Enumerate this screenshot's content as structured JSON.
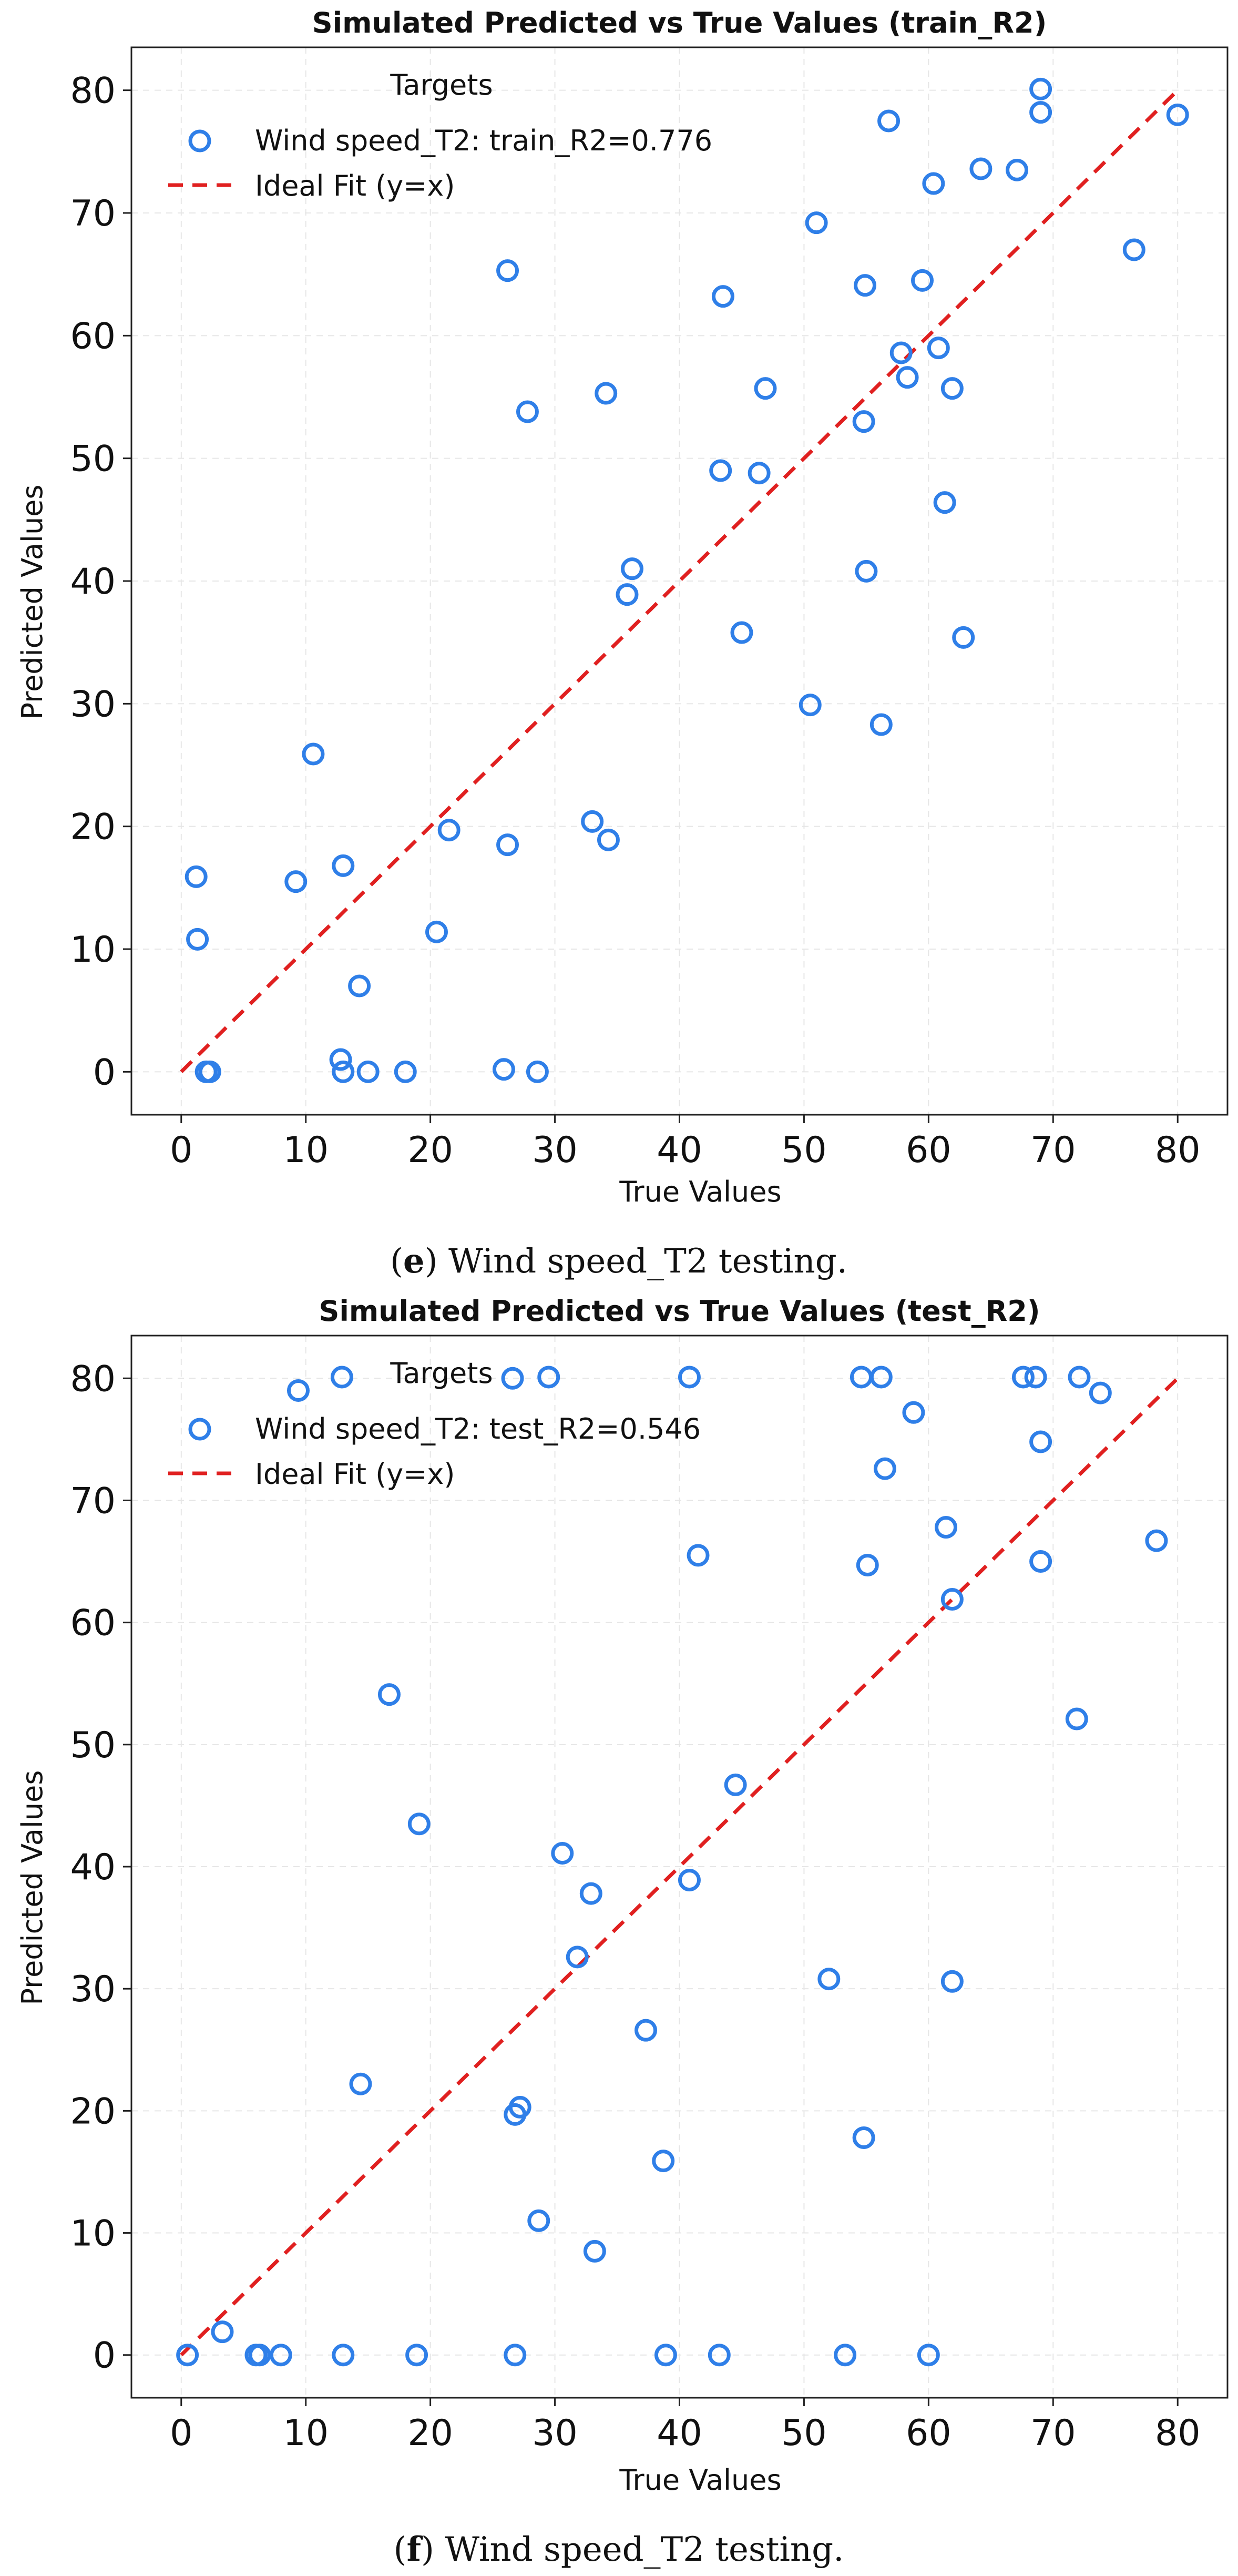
{
  "colors": {
    "points": "#2f7fe8",
    "ideal_line": "#e02020"
  },
  "chart_data": [
    {
      "type": "scatter",
      "title": "Simulated Predicted vs True Values (train_R2)",
      "xlabel": "True Values",
      "ylabel": "Predicted Values",
      "xlim": [
        -4,
        84
      ],
      "ylim": [
        -3.5,
        83.5
      ],
      "xticks": [
        0,
        10,
        20,
        30,
        40,
        50,
        60,
        70,
        80
      ],
      "yticks": [
        0,
        10,
        20,
        30,
        40,
        50,
        60,
        70,
        80
      ],
      "grid": true,
      "legend": {
        "title": "Targets",
        "placement": "top-left",
        "series_label": "Wind speed_T2: train_R2=0.776",
        "ideal_label": "Ideal Fit (y=x)"
      },
      "ideal_line": {
        "from": 0,
        "to": 80
      },
      "caption": {
        "letter": "e",
        "open": "(",
        "close": ")",
        "text": " Wind speed_T2 testing."
      },
      "points": [
        {
          "x": 1.2,
          "y": 15.9
        },
        {
          "x": 1.3,
          "y": 10.8
        },
        {
          "x": 2.0,
          "y": 0
        },
        {
          "x": 2.3,
          "y": 0
        },
        {
          "x": 9.2,
          "y": 15.5
        },
        {
          "x": 10.6,
          "y": 25.9
        },
        {
          "x": 12.8,
          "y": 1.0
        },
        {
          "x": 13.0,
          "y": 16.8
        },
        {
          "x": 13.0,
          "y": 0
        },
        {
          "x": 14.3,
          "y": 7.0
        },
        {
          "x": 15.0,
          "y": 0
        },
        {
          "x": 18.0,
          "y": 0
        },
        {
          "x": 20.5,
          "y": 11.4
        },
        {
          "x": 21.5,
          "y": 19.7
        },
        {
          "x": 25.9,
          "y": 0.2
        },
        {
          "x": 26.2,
          "y": 18.5
        },
        {
          "x": 26.2,
          "y": 65.3
        },
        {
          "x": 27.8,
          "y": 53.8
        },
        {
          "x": 28.6,
          "y": 0
        },
        {
          "x": 33.0,
          "y": 20.4
        },
        {
          "x": 34.1,
          "y": 55.3
        },
        {
          "x": 34.3,
          "y": 18.9
        },
        {
          "x": 35.8,
          "y": 38.9
        },
        {
          "x": 36.2,
          "y": 41.0
        },
        {
          "x": 43.3,
          "y": 49.0
        },
        {
          "x": 43.5,
          "y": 63.2
        },
        {
          "x": 45.0,
          "y": 35.8
        },
        {
          "x": 46.4,
          "y": 48.8
        },
        {
          "x": 46.9,
          "y": 55.7
        },
        {
          "x": 50.5,
          "y": 29.9
        },
        {
          "x": 51.0,
          "y": 69.2
        },
        {
          "x": 54.8,
          "y": 53.0
        },
        {
          "x": 54.9,
          "y": 64.1
        },
        {
          "x": 55.0,
          "y": 40.8
        },
        {
          "x": 56.2,
          "y": 28.3
        },
        {
          "x": 56.8,
          "y": 77.5
        },
        {
          "x": 57.8,
          "y": 58.6
        },
        {
          "x": 58.3,
          "y": 56.6
        },
        {
          "x": 59.5,
          "y": 64.5
        },
        {
          "x": 60.4,
          "y": 72.4
        },
        {
          "x": 60.8,
          "y": 59.0
        },
        {
          "x": 61.3,
          "y": 46.4
        },
        {
          "x": 61.9,
          "y": 55.7
        },
        {
          "x": 62.8,
          "y": 35.4
        },
        {
          "x": 64.2,
          "y": 73.6
        },
        {
          "x": 67.1,
          "y": 73.5
        },
        {
          "x": 69.0,
          "y": 80.1
        },
        {
          "x": 69.0,
          "y": 78.2
        },
        {
          "x": 76.5,
          "y": 67.0
        },
        {
          "x": 80.0,
          "y": 78.0
        }
      ]
    },
    {
      "type": "scatter",
      "title": "Simulated Predicted vs True Values (test_R2)",
      "xlabel": "True Values",
      "ylabel": "Predicted Values",
      "xlim": [
        -4,
        84
      ],
      "ylim": [
        -3.5,
        83.5
      ],
      "xticks": [
        0,
        10,
        20,
        30,
        40,
        50,
        60,
        70,
        80
      ],
      "yticks": [
        0,
        10,
        20,
        30,
        40,
        50,
        60,
        70,
        80
      ],
      "grid": true,
      "legend": {
        "title": "Targets",
        "placement": "top-left",
        "series_label": "Wind speed_T2: test_R2=0.546",
        "ideal_label": "Ideal Fit (y=x)"
      },
      "ideal_line": {
        "from": 0,
        "to": 80
      },
      "caption": {
        "letter": "f",
        "open": "(",
        "close": ")",
        "text": " Wind speed_T2 testing."
      },
      "points": [
        {
          "x": 0.5,
          "y": 0
        },
        {
          "x": 3.3,
          "y": 1.9
        },
        {
          "x": 6.0,
          "y": 0
        },
        {
          "x": 6.3,
          "y": 0
        },
        {
          "x": 8.0,
          "y": 0
        },
        {
          "x": 9.4,
          "y": 79.0
        },
        {
          "x": 12.9,
          "y": 80.1
        },
        {
          "x": 13.0,
          "y": 0
        },
        {
          "x": 14.4,
          "y": 22.2
        },
        {
          "x": 16.7,
          "y": 54.1
        },
        {
          "x": 18.9,
          "y": 0
        },
        {
          "x": 19.1,
          "y": 43.5
        },
        {
          "x": 26.6,
          "y": 80.0
        },
        {
          "x": 26.8,
          "y": 19.7
        },
        {
          "x": 26.8,
          "y": 0
        },
        {
          "x": 27.2,
          "y": 20.3
        },
        {
          "x": 28.7,
          "y": 11.0
        },
        {
          "x": 29.5,
          "y": 80.1
        },
        {
          "x": 30.6,
          "y": 41.1
        },
        {
          "x": 31.8,
          "y": 32.6
        },
        {
          "x": 32.9,
          "y": 37.8
        },
        {
          "x": 33.2,
          "y": 8.5
        },
        {
          "x": 37.3,
          "y": 26.6
        },
        {
          "x": 38.7,
          "y": 15.9
        },
        {
          "x": 38.9,
          "y": 0
        },
        {
          "x": 40.8,
          "y": 80.1
        },
        {
          "x": 40.8,
          "y": 38.9
        },
        {
          "x": 41.5,
          "y": 65.5
        },
        {
          "x": 43.2,
          "y": 0
        },
        {
          "x": 44.5,
          "y": 46.7
        },
        {
          "x": 52.0,
          "y": 30.8
        },
        {
          "x": 53.3,
          "y": 0
        },
        {
          "x": 54.6,
          "y": 80.1
        },
        {
          "x": 54.8,
          "y": 17.8
        },
        {
          "x": 55.1,
          "y": 64.7
        },
        {
          "x": 56.2,
          "y": 80.1
        },
        {
          "x": 56.5,
          "y": 72.6
        },
        {
          "x": 58.8,
          "y": 77.2
        },
        {
          "x": 60.0,
          "y": 0
        },
        {
          "x": 61.4,
          "y": 67.8
        },
        {
          "x": 61.9,
          "y": 61.9
        },
        {
          "x": 61.9,
          "y": 30.6
        },
        {
          "x": 67.6,
          "y": 80.1
        },
        {
          "x": 68.6,
          "y": 80.1
        },
        {
          "x": 69.0,
          "y": 74.8
        },
        {
          "x": 69.0,
          "y": 65.0
        },
        {
          "x": 71.9,
          "y": 52.1
        },
        {
          "x": 72.1,
          "y": 80.1
        },
        {
          "x": 73.8,
          "y": 78.8
        },
        {
          "x": 78.3,
          "y": 66.7
        }
      ]
    }
  ]
}
